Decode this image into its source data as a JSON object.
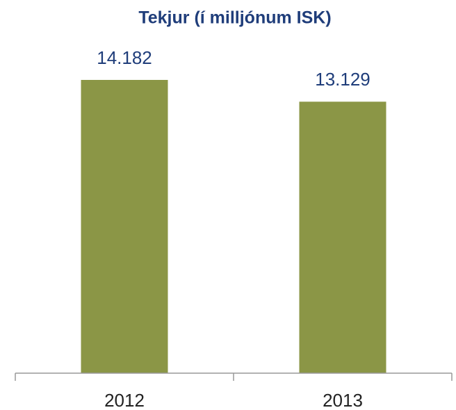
{
  "chart_data": {
    "type": "bar",
    "title": "Tekjur (í milljónum ISK)",
    "categories": [
      "2012",
      "2013"
    ],
    "values": [
      14182,
      13129
    ],
    "value_labels": [
      "14.182",
      "13.129"
    ],
    "color": "#8b9646"
  }
}
